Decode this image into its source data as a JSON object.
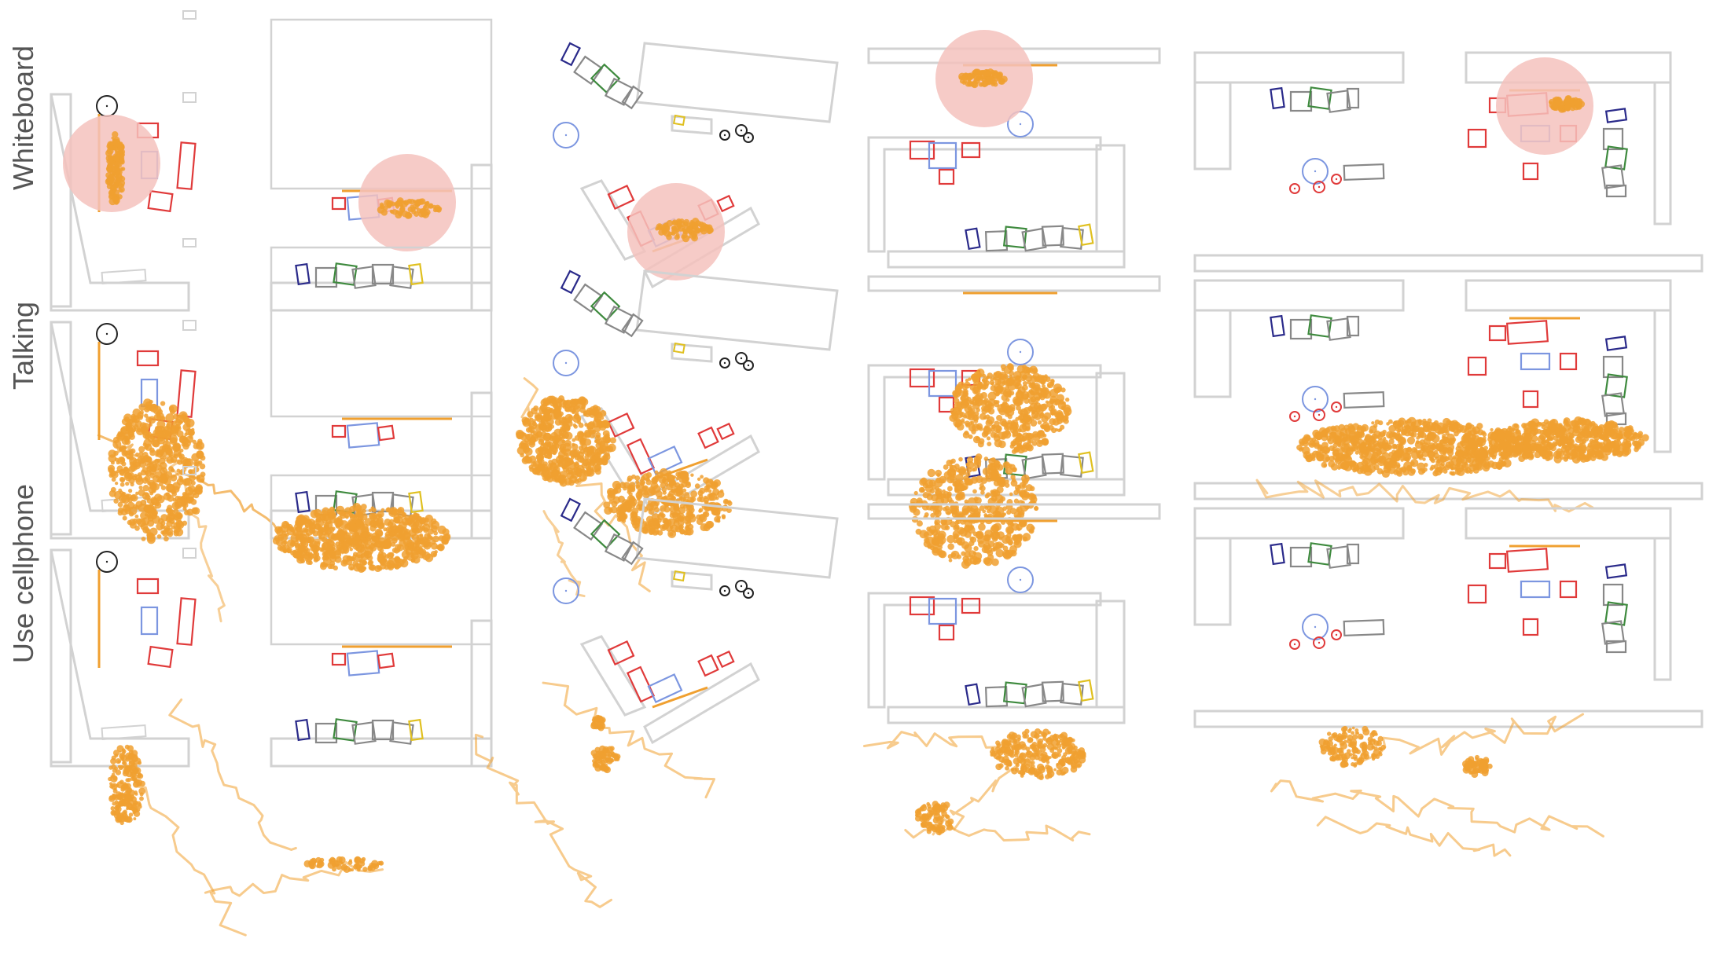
{
  "rows": [
    {
      "label": "Whiteboard",
      "mode": "spot"
    },
    {
      "label": "Talking",
      "mode": "dense"
    },
    {
      "label": "Use cellphone",
      "mode": "trails"
    }
  ],
  "colors": {
    "trajectory": "#f0a030",
    "highlight": "#f4c2bd",
    "wall": "#d2d2d2",
    "red_object": "#e03a3a",
    "blue_object": "#7c96e0",
    "navy_object": "#2a2a8a",
    "green_object": "#3e8a3e",
    "gray_object": "#888888",
    "yellow_object": "#e0c020",
    "camera": "#222222"
  }
}
